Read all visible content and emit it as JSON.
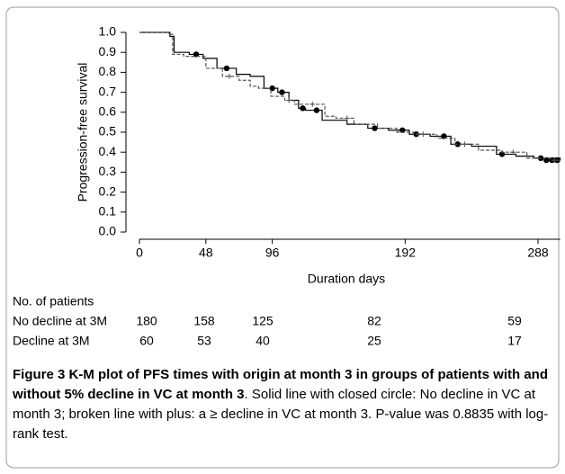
{
  "chart_data": {
    "type": "km",
    "ylabel": "Progression-free survival",
    "xlabel": "Duration days",
    "xlim": [
      0,
      304
    ],
    "xticks": [
      0,
      48,
      96,
      192,
      288
    ],
    "ylim": [
      0,
      1
    ],
    "yticks": [
      {
        "value": 0,
        "label": "0.0"
      },
      0.1,
      0.2,
      0.3,
      0.4,
      0.5,
      0.6,
      0.7,
      0.8,
      0.9,
      {
        "value": 1,
        "label": "1.0"
      }
    ],
    "series": [
      {
        "color": "#000000",
        "style": "solid",
        "marker": "circle",
        "x": [
          0,
          22,
          25,
          36,
          46,
          56,
          70,
          80,
          90,
          100,
          108,
          115,
          120,
          132,
          150,
          165,
          180,
          195,
          210,
          225,
          240,
          258,
          272,
          285,
          304
        ],
        "values": [
          1.0,
          0.98,
          0.9,
          0.89,
          0.87,
          0.82,
          0.79,
          0.78,
          0.72,
          0.7,
          0.66,
          0.62,
          0.61,
          0.56,
          0.54,
          0.52,
          0.51,
          0.49,
          0.48,
          0.44,
          0.43,
          0.39,
          0.38,
          0.37,
          0.36
        ],
        "censor_x": [
          41,
          63,
          96,
          103,
          118,
          128,
          170,
          190,
          200,
          220,
          230,
          262,
          290,
          294,
          298,
          302
        ],
        "censor_values": [
          0.89,
          0.82,
          0.72,
          0.7,
          0.62,
          0.61,
          0.52,
          0.51,
          0.49,
          0.48,
          0.44,
          0.39,
          0.37,
          0.36,
          0.36,
          0.36
        ]
      },
      {
        "color": "#555555",
        "style": "dashed",
        "marker": "plus",
        "x": [
          0,
          21,
          24,
          32,
          48,
          60,
          72,
          80,
          86,
          95,
          105,
          112,
          134,
          142,
          155,
          172,
          186,
          198,
          215,
          228,
          245,
          262,
          280,
          298,
          304
        ],
        "values": [
          1.0,
          0.99,
          0.89,
          0.88,
          0.82,
          0.78,
          0.76,
          0.73,
          0.72,
          0.68,
          0.66,
          0.64,
          0.58,
          0.57,
          0.54,
          0.52,
          0.5,
          0.49,
          0.47,
          0.44,
          0.41,
          0.4,
          0.37,
          0.36,
          0.36
        ],
        "censor_x": [
          65,
          108,
          125,
          150,
          205,
          235,
          270,
          300
        ],
        "censor_values": [
          0.78,
          0.66,
          0.64,
          0.57,
          0.49,
          0.44,
          0.4,
          0.36
        ]
      }
    ]
  },
  "risk_table": {
    "title": "No. of patients",
    "rows": [
      {
        "label": "No decline at 3M",
        "values": [
          180,
          158,
          125,
          82,
          59
        ]
      },
      {
        "label": "Decline at 3M",
        "values": [
          60,
          53,
          40,
          25,
          17
        ]
      }
    ]
  },
  "caption": {
    "label": "Figure 3",
    "title": "K-M plot of PFS times with origin at month 3 in groups of patients with and without 5% decline in VC at month 3",
    "text": ". Solid line with closed circle: No decline in VC at month 3; broken line with plus: a ≥ decline in VC at month 3. P-value was 0.8835 with log-rank test."
  }
}
